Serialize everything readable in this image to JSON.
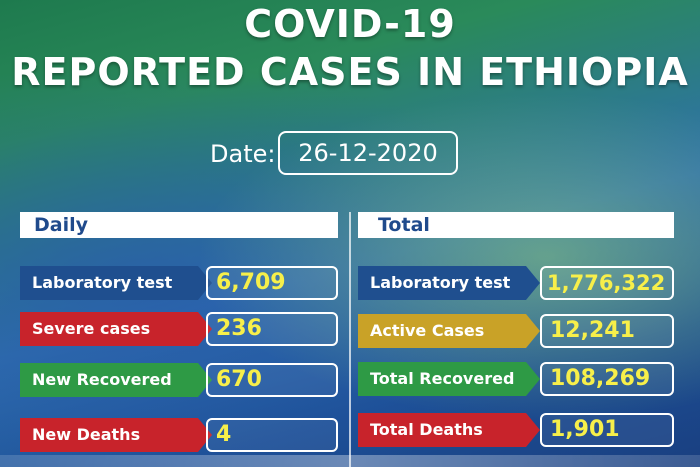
{
  "header": {
    "title_line1": "COVID-19",
    "title_line2": "REPORTED CASES IN ETHIOPIA"
  },
  "date": {
    "label": "Date:",
    "value": "26-12-2020"
  },
  "daily": {
    "heading": "Daily",
    "rows": [
      {
        "label": "Laboratory test",
        "value": "6,709",
        "color": "#1f4f8f"
      },
      {
        "label": "Severe cases",
        "value": "236",
        "color": "#c8232b"
      },
      {
        "label": "New Recovered",
        "value": "670",
        "color": "#2e9a45"
      },
      {
        "label": "New Deaths",
        "value": "4",
        "color": "#c8232b"
      }
    ]
  },
  "total": {
    "heading": "Total",
    "rows": [
      {
        "label": "Laboratory test",
        "value": "1,776,322",
        "color": "#1f4f8f"
      },
      {
        "label": "Active Cases",
        "value": "12,241",
        "color": "#c9a227"
      },
      {
        "label": "Total Recovered",
        "value": "108,269",
        "color": "#2e9a45"
      },
      {
        "label": "Total Deaths",
        "value": "1,901",
        "color": "#c8232b"
      }
    ]
  }
}
